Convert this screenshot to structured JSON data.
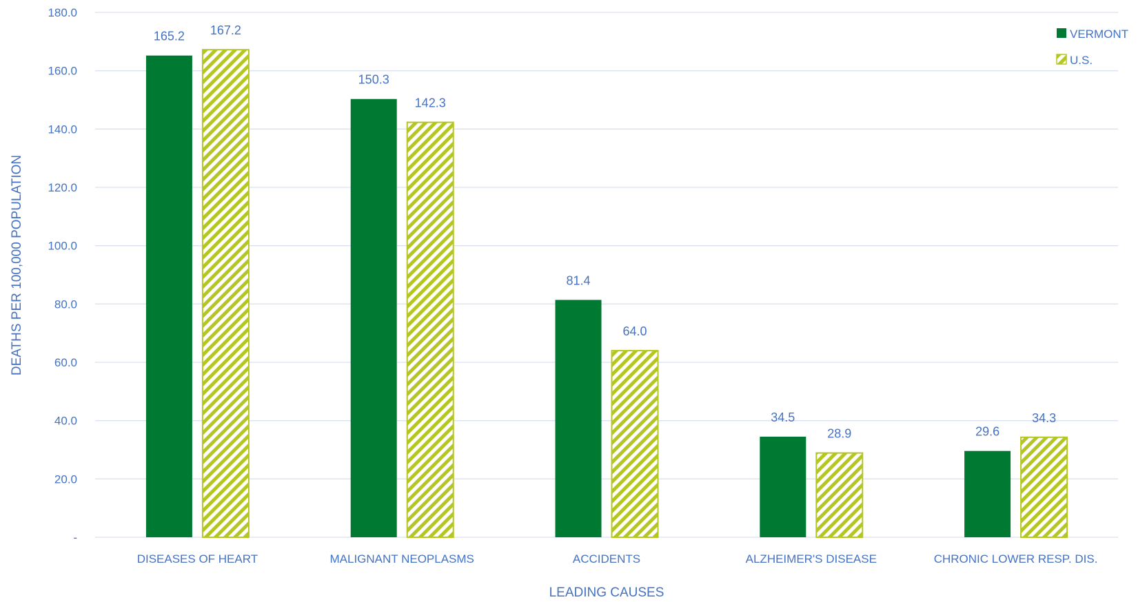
{
  "chart_data": {
    "type": "bar",
    "xlabel": "LEADING CAUSES",
    "ylabel": "DEATHS PER 100,000 POPULATION",
    "ylim": [
      0,
      180
    ],
    "y_ticks": [
      0,
      20,
      40,
      60,
      80,
      100,
      120,
      140,
      160,
      180
    ],
    "y_tick_labels": [
      "-",
      "20.0",
      "40.0",
      "60.0",
      "80.0",
      "100.0",
      "120.0",
      "140.0",
      "160.0",
      "180.0"
    ],
    "categories": [
      "DISEASES OF HEART",
      "MALIGNANT NEOPLASMS",
      "ACCIDENTS",
      "ALZHEIMER'S DISEASE",
      "CHRONIC LOWER RESP. DIS."
    ],
    "series": [
      {
        "name": "VERMONT",
        "values": [
          165.2,
          150.3,
          81.4,
          34.5,
          29.6
        ],
        "labels": [
          "165.2",
          "150.3",
          "81.4",
          "34.5",
          "29.6"
        ],
        "color": "#007a33",
        "pattern": "solid"
      },
      {
        "name": "U.S.",
        "values": [
          167.2,
          142.3,
          64.0,
          28.9,
          34.3
        ],
        "labels": [
          "167.2",
          "142.3",
          "64.0",
          "28.9",
          "34.3"
        ],
        "color": "#b5c623",
        "pattern": "diagonal-stripes"
      }
    ],
    "legend_position": "top-right",
    "grid": true,
    "text_color": "#4472c4",
    "grid_color": "#d9e1f2"
  }
}
